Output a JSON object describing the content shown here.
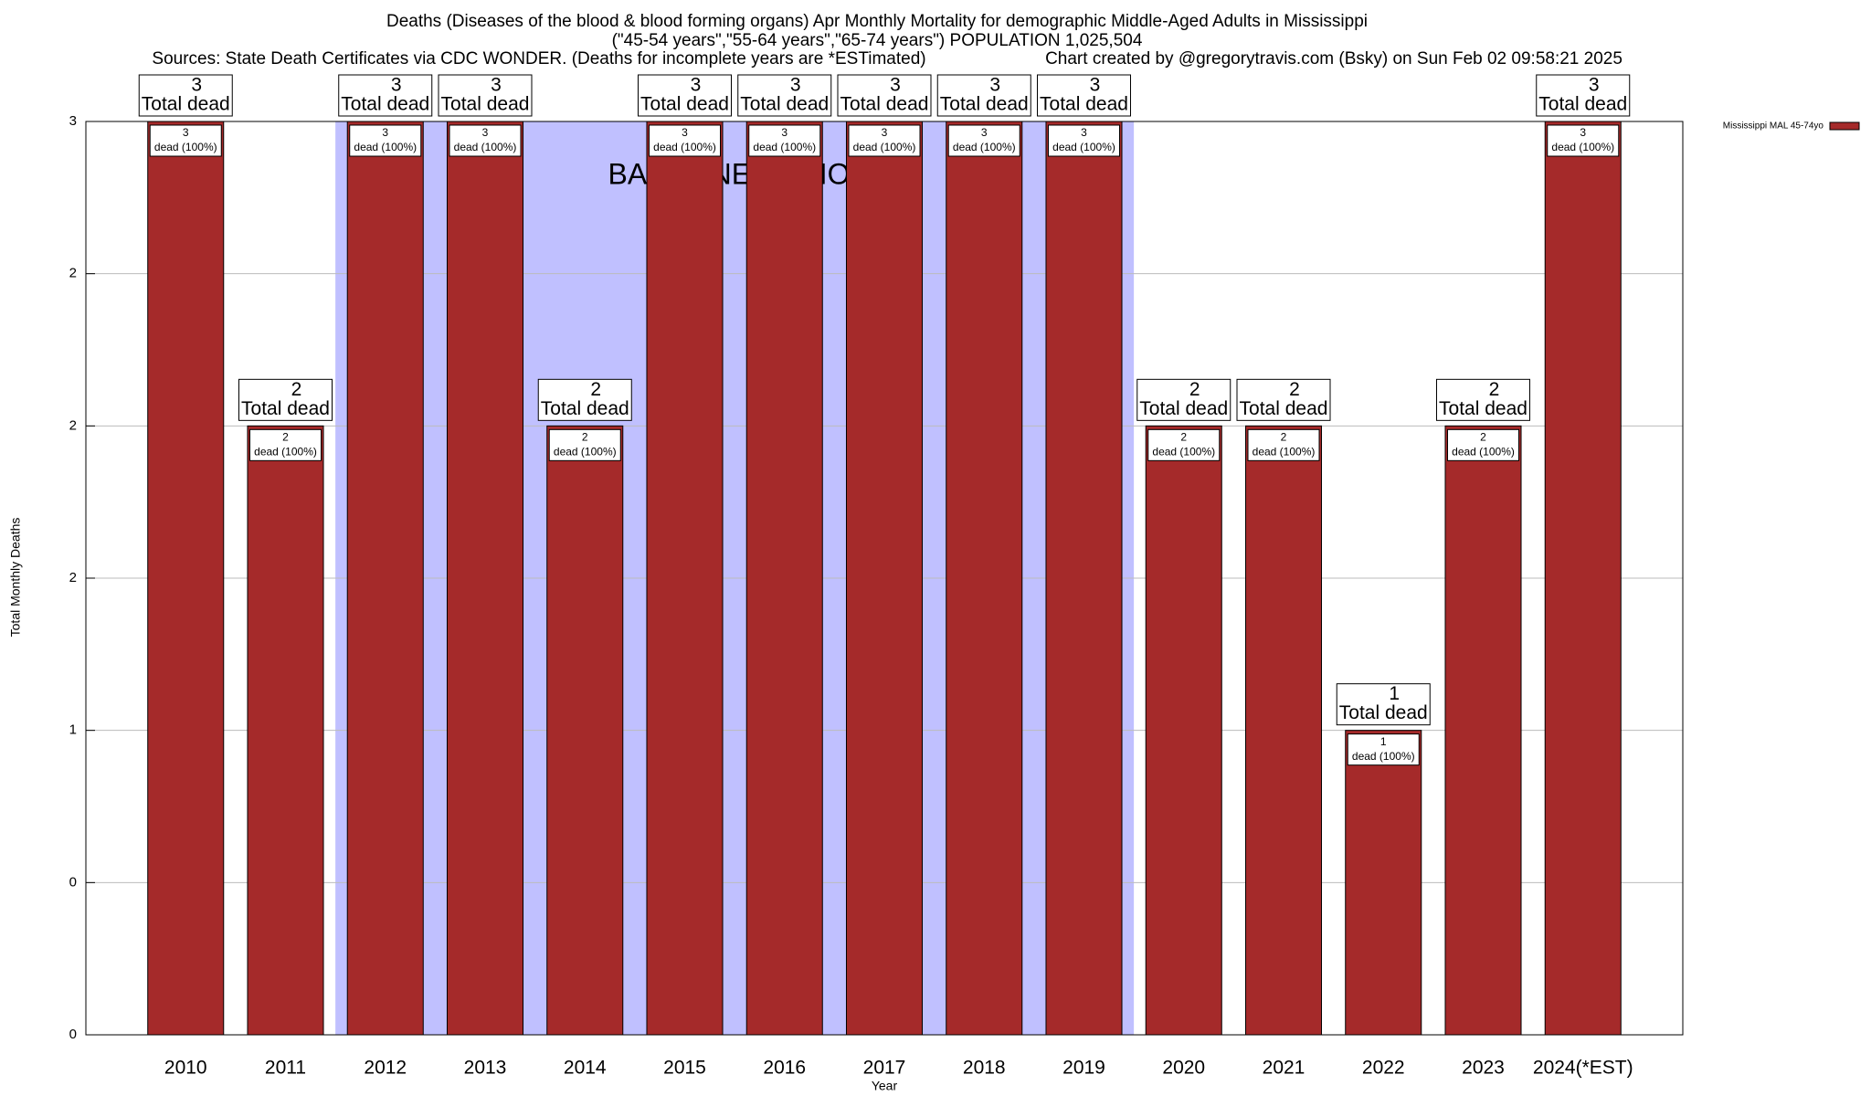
{
  "chart_data": {
    "type": "bar",
    "title": "Deaths (Diseases of the blood & blood forming organs) Apr Monthly Mortality for demographic Middle-Aged Adults in Mississippi",
    "subtitle": "(\"45-54 years\",\"55-64 years\",\"65-74 years\") POPULATION 1,025,504",
    "source": "Sources: State Death Certificates via CDC WONDER. (Deaths for incomplete years are *ESTimated)",
    "credit": "Chart created by @gregorytravis.com (Bsky) on Sun Feb 02 09:58:21 2025",
    "x_label": "Year",
    "y_label": "Total Monthly Deaths",
    "categories": [
      "2010",
      "2011",
      "2012",
      "2013",
      "2014",
      "2015",
      "2016",
      "2017",
      "2018",
      "2019",
      "2020",
      "2021",
      "2022",
      "2023",
      "2024(*EST)"
    ],
    "series": [
      {
        "name": "Mississippi MAL 45-74yo",
        "color": "#a52a2a",
        "values": [
          3,
          2,
          3,
          3,
          2,
          3,
          3,
          3,
          3,
          3,
          2,
          2,
          1,
          2,
          3
        ]
      }
    ],
    "total_label_text": "Total dead",
    "segment_label_text": "dead (100%)",
    "baseline_label": "BASELINE PERIOD",
    "baseline_range": [
      "2012",
      "2019"
    ],
    "baseline_color": "#c0c0ff",
    "ylim": [
      0,
      3
    ],
    "yticks": [
      0,
      {
        "value": 0.5,
        "label": "0"
      },
      1,
      {
        "value": 1.5,
        "label": "2"
      },
      2,
      {
        "value": 2.5,
        "label": "2"
      },
      3
    ],
    "grid": true,
    "legend": "top-right"
  }
}
